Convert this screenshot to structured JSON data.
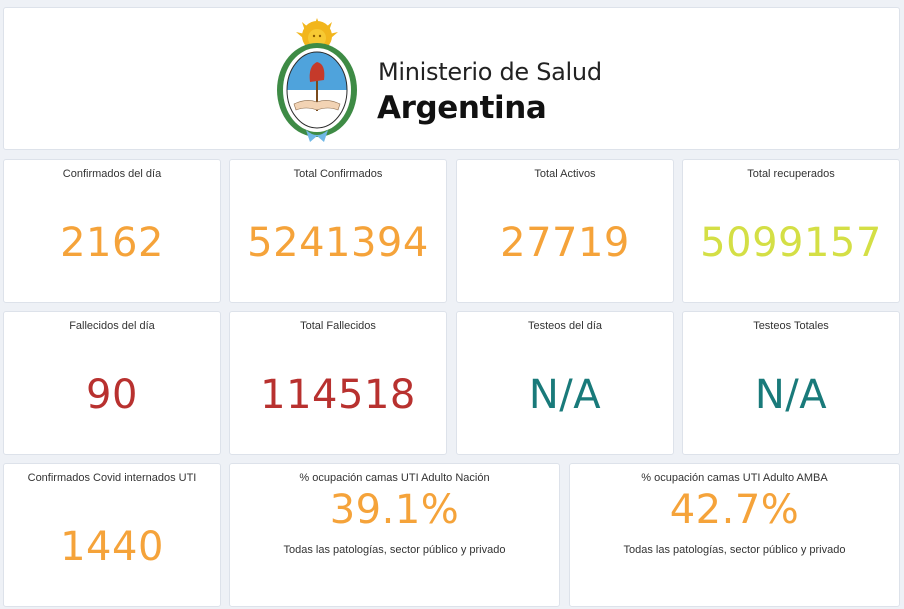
{
  "header": {
    "org_line1": "Ministerio de Salud",
    "org_line2": "Argentina",
    "emblem": "coat-of-arms-argentina"
  },
  "colors": {
    "orange": "#f5a33a",
    "red": "#b8312f",
    "teal": "#197a7a",
    "yellow_green": "#d4df45"
  },
  "row1": [
    {
      "title": "Confirmados del día",
      "value": "2162"
    },
    {
      "title": "Total Confirmados",
      "value": "5241394"
    },
    {
      "title": "Total Activos",
      "value": "27719"
    },
    {
      "title": "Total recuperados",
      "value": "5099157"
    }
  ],
  "row2": [
    {
      "title": "Fallecidos del día",
      "value": "90"
    },
    {
      "title": "Total Fallecidos",
      "value": "114518"
    },
    {
      "title": "Testeos del día",
      "value": "N/A"
    },
    {
      "title": "Testeos Totales",
      "value": "N/A"
    }
  ],
  "row3": [
    {
      "title": "Confirmados Covid internados UTI",
      "value": "1440"
    },
    {
      "title": "% ocupación camas UTI Adulto Nación",
      "value": "39.1%",
      "note": "Todas las patologías, sector público y privado"
    },
    {
      "title": "% ocupación camas UTI Adulto AMBA",
      "value": "42.7%",
      "note": "Todas las patologías, sector público y privado"
    }
  ]
}
